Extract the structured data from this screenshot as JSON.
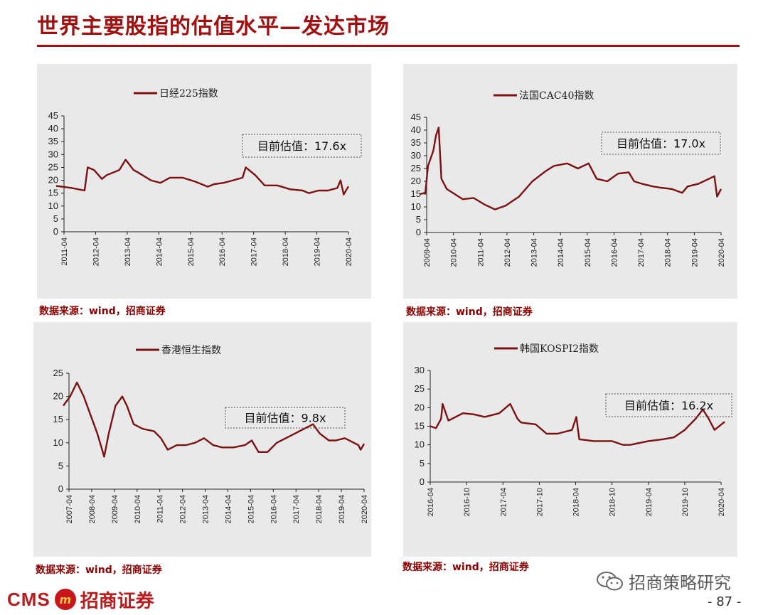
{
  "page": {
    "title": "世界主要股指的估值水平—发达市场",
    "page_number": "- 87 -",
    "logo": {
      "cms": "CMS",
      "emblem": "m",
      "cn": "招商证券"
    },
    "wechat": "招商策略研究"
  },
  "colors": {
    "series": "#7b1113",
    "title": "#a01010",
    "source": "#8b0000",
    "panel_bg": "#e9e9e9"
  },
  "chart_data": [
    {
      "type": "line",
      "legend": "日经225指数",
      "annotation": "目前估值：17.6x",
      "source": "数据来源：wind，招商证券",
      "ylim": [
        0,
        45
      ],
      "yticks": [
        "0",
        "5",
        "10",
        "15",
        "20",
        "25",
        "30",
        "35",
        "40",
        "45"
      ],
      "xticks": [
        "2011-04",
        "2012-04",
        "2013-04",
        "2014-04",
        "2015-04",
        "2016-04",
        "2017-04",
        "2018-04",
        "2019-04",
        "2020-04"
      ],
      "series": [
        {
          "x": [
            2011.0,
            2011.5,
            2011.9,
            2012.0,
            2012.2,
            2012.45,
            2012.6,
            2013.0,
            2013.2,
            2013.45,
            2013.6,
            2014.0,
            2014.3,
            2014.6,
            2015.0,
            2015.4,
            2015.8,
            2016.0,
            2016.3,
            2016.6,
            2016.9,
            2017.0,
            2017.3,
            2017.6,
            2018.0,
            2018.4,
            2018.8,
            2019.0,
            2019.3,
            2019.6,
            2019.9,
            2020.0,
            2020.1,
            2020.25
          ],
          "y": [
            17.8,
            17,
            16,
            25,
            24,
            20.5,
            22,
            24,
            28,
            24,
            23,
            20,
            19,
            21,
            21,
            19.5,
            17.5,
            18.5,
            19,
            20,
            21,
            25,
            22,
            18,
            18,
            16.5,
            16,
            15,
            16,
            16,
            17,
            20,
            14.5,
            17.6
          ]
        }
      ]
    },
    {
      "type": "line",
      "legend": "法国CAC40指数",
      "annotation": "目前估值：17.0x",
      "source": "数据来源：wind，招商证券",
      "ylim": [
        0,
        45
      ],
      "yticks": [
        "0",
        "5",
        "10",
        "15",
        "20",
        "25",
        "30",
        "35",
        "40",
        "45"
      ],
      "xticks": [
        "2009-04",
        "2010-04",
        "2011-04",
        "2012-04",
        "2013-04",
        "2014-04",
        "2015-04",
        "2016-04",
        "2017-04",
        "2018-04",
        "2019-04",
        "2020-04"
      ],
      "series": [
        {
          "x": [
            2009.0,
            2009.2,
            2009.3,
            2009.5,
            2009.6,
            2009.7,
            2009.8,
            2009.85,
            2010.0,
            2010.3,
            2010.6,
            2011.0,
            2011.4,
            2011.8,
            2012.2,
            2012.7,
            2013.2,
            2013.7,
            2014.0,
            2014.5,
            2014.9,
            2015.3,
            2015.6,
            2016.0,
            2016.4,
            2016.8,
            2017.0,
            2017.3,
            2017.7,
            2018.0,
            2018.4,
            2018.8,
            2019.0,
            2019.4,
            2019.8,
            2020.0,
            2020.1,
            2020.25
          ],
          "y": [
            15,
            15.5,
            26,
            32,
            38,
            41,
            21,
            20,
            17,
            15,
            13,
            13.5,
            11,
            9,
            10.5,
            14,
            20,
            24,
            26,
            27,
            25,
            27,
            21,
            20,
            23,
            23.5,
            20,
            19,
            18,
            17.5,
            17,
            15.5,
            18,
            19,
            21,
            22,
            14,
            17
          ]
        }
      ]
    },
    {
      "type": "line",
      "legend": "香港恒生指数",
      "annotation": "目前估值：9.8x",
      "source": "数据来源：wind，招商证券",
      "ylim": [
        0,
        25
      ],
      "yticks": [
        "0",
        "5",
        "10",
        "15",
        "20",
        "25"
      ],
      "xticks": [
        "2007-04",
        "2008-04",
        "2009-04",
        "2010-04",
        "2011-04",
        "2012-04",
        "2013-04",
        "2014-04",
        "2015-04",
        "2016-04",
        "2017-04",
        "2018-04",
        "2019-04",
        "2020-04"
      ],
      "series": [
        {
          "x": [
            2007.0,
            2007.3,
            2007.6,
            2007.9,
            2008.2,
            2008.5,
            2008.8,
            2009.0,
            2009.3,
            2009.6,
            2009.8,
            2010.1,
            2010.5,
            2011.0,
            2011.3,
            2011.6,
            2012.0,
            2012.4,
            2012.8,
            2013.2,
            2013.6,
            2014.0,
            2014.5,
            2015.0,
            2015.3,
            2015.6,
            2016.0,
            2016.4,
            2016.8,
            2017.2,
            2017.6,
            2018.0,
            2018.3,
            2018.7,
            2019.0,
            2019.4,
            2019.8,
            2020.0,
            2020.1,
            2020.25
          ],
          "y": [
            18,
            20,
            23,
            20,
            16,
            12,
            7,
            12,
            18,
            20,
            18,
            14,
            13,
            12.5,
            11,
            8.5,
            9.5,
            9.5,
            10,
            11,
            9.5,
            9,
            9,
            9.5,
            10.5,
            8,
            8,
            10,
            11,
            12,
            13,
            14,
            12,
            10.5,
            10.5,
            11,
            10,
            9.5,
            8.5,
            9.8
          ]
        }
      ]
    },
    {
      "type": "line",
      "legend": "韩国KOSPI2指数",
      "annotation": "目前估值：16.2x",
      "source": "数据来源：wind，招商证券",
      "ylim": [
        0,
        30
      ],
      "yticks": [
        "0",
        "5",
        "10",
        "15",
        "20",
        "25",
        "30"
      ],
      "xticks": [
        "2016-04",
        "2016-10",
        "2017-04",
        "2017-10",
        "2018-04",
        "2018-10",
        "2019-04",
        "2019-10",
        "2020-04"
      ],
      "series": [
        {
          "x": [
            2016.25,
            2016.33,
            2016.4,
            2016.42,
            2016.5,
            2016.7,
            2016.85,
            2017.0,
            2017.2,
            2017.35,
            2017.45,
            2017.5,
            2017.7,
            2017.85,
            2018.0,
            2018.2,
            2018.26,
            2018.3,
            2018.5,
            2018.75,
            2018.9,
            2019.0,
            2019.25,
            2019.45,
            2019.6,
            2019.75,
            2019.9,
            2020.0,
            2020.08,
            2020.16,
            2020.3
          ],
          "y": [
            15,
            14.5,
            17,
            21,
            16.5,
            18.5,
            18.2,
            17.5,
            18.5,
            21,
            17,
            16,
            15.5,
            13,
            13,
            14,
            17.5,
            11.5,
            11,
            11,
            10,
            10,
            11,
            11.5,
            12,
            14,
            17,
            19.5,
            17,
            14,
            16.2
          ]
        }
      ]
    }
  ]
}
